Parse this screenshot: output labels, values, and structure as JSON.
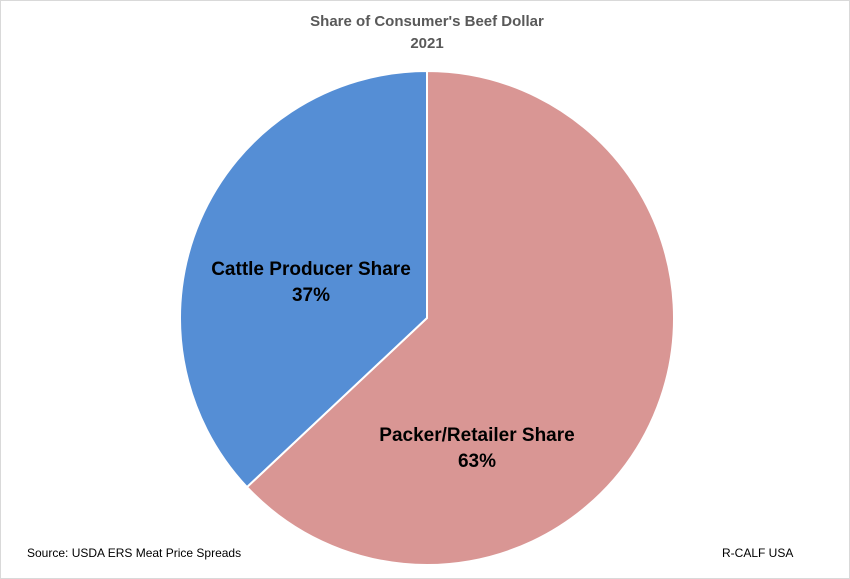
{
  "chart_data": {
    "type": "pie",
    "title": "Share of Consumer's Beef Dollar",
    "subtitle": "2021",
    "categories": [
      "Packer/Retailer Share",
      "Cattle Producer Share"
    ],
    "values": [
      63,
      37
    ],
    "value_labels": [
      "63%",
      "37%"
    ],
    "colors": [
      "#d99694",
      "#558ed5"
    ],
    "source": "Source: USDA ERS Meat Price Spreads",
    "credit": "R-CALF USA"
  }
}
